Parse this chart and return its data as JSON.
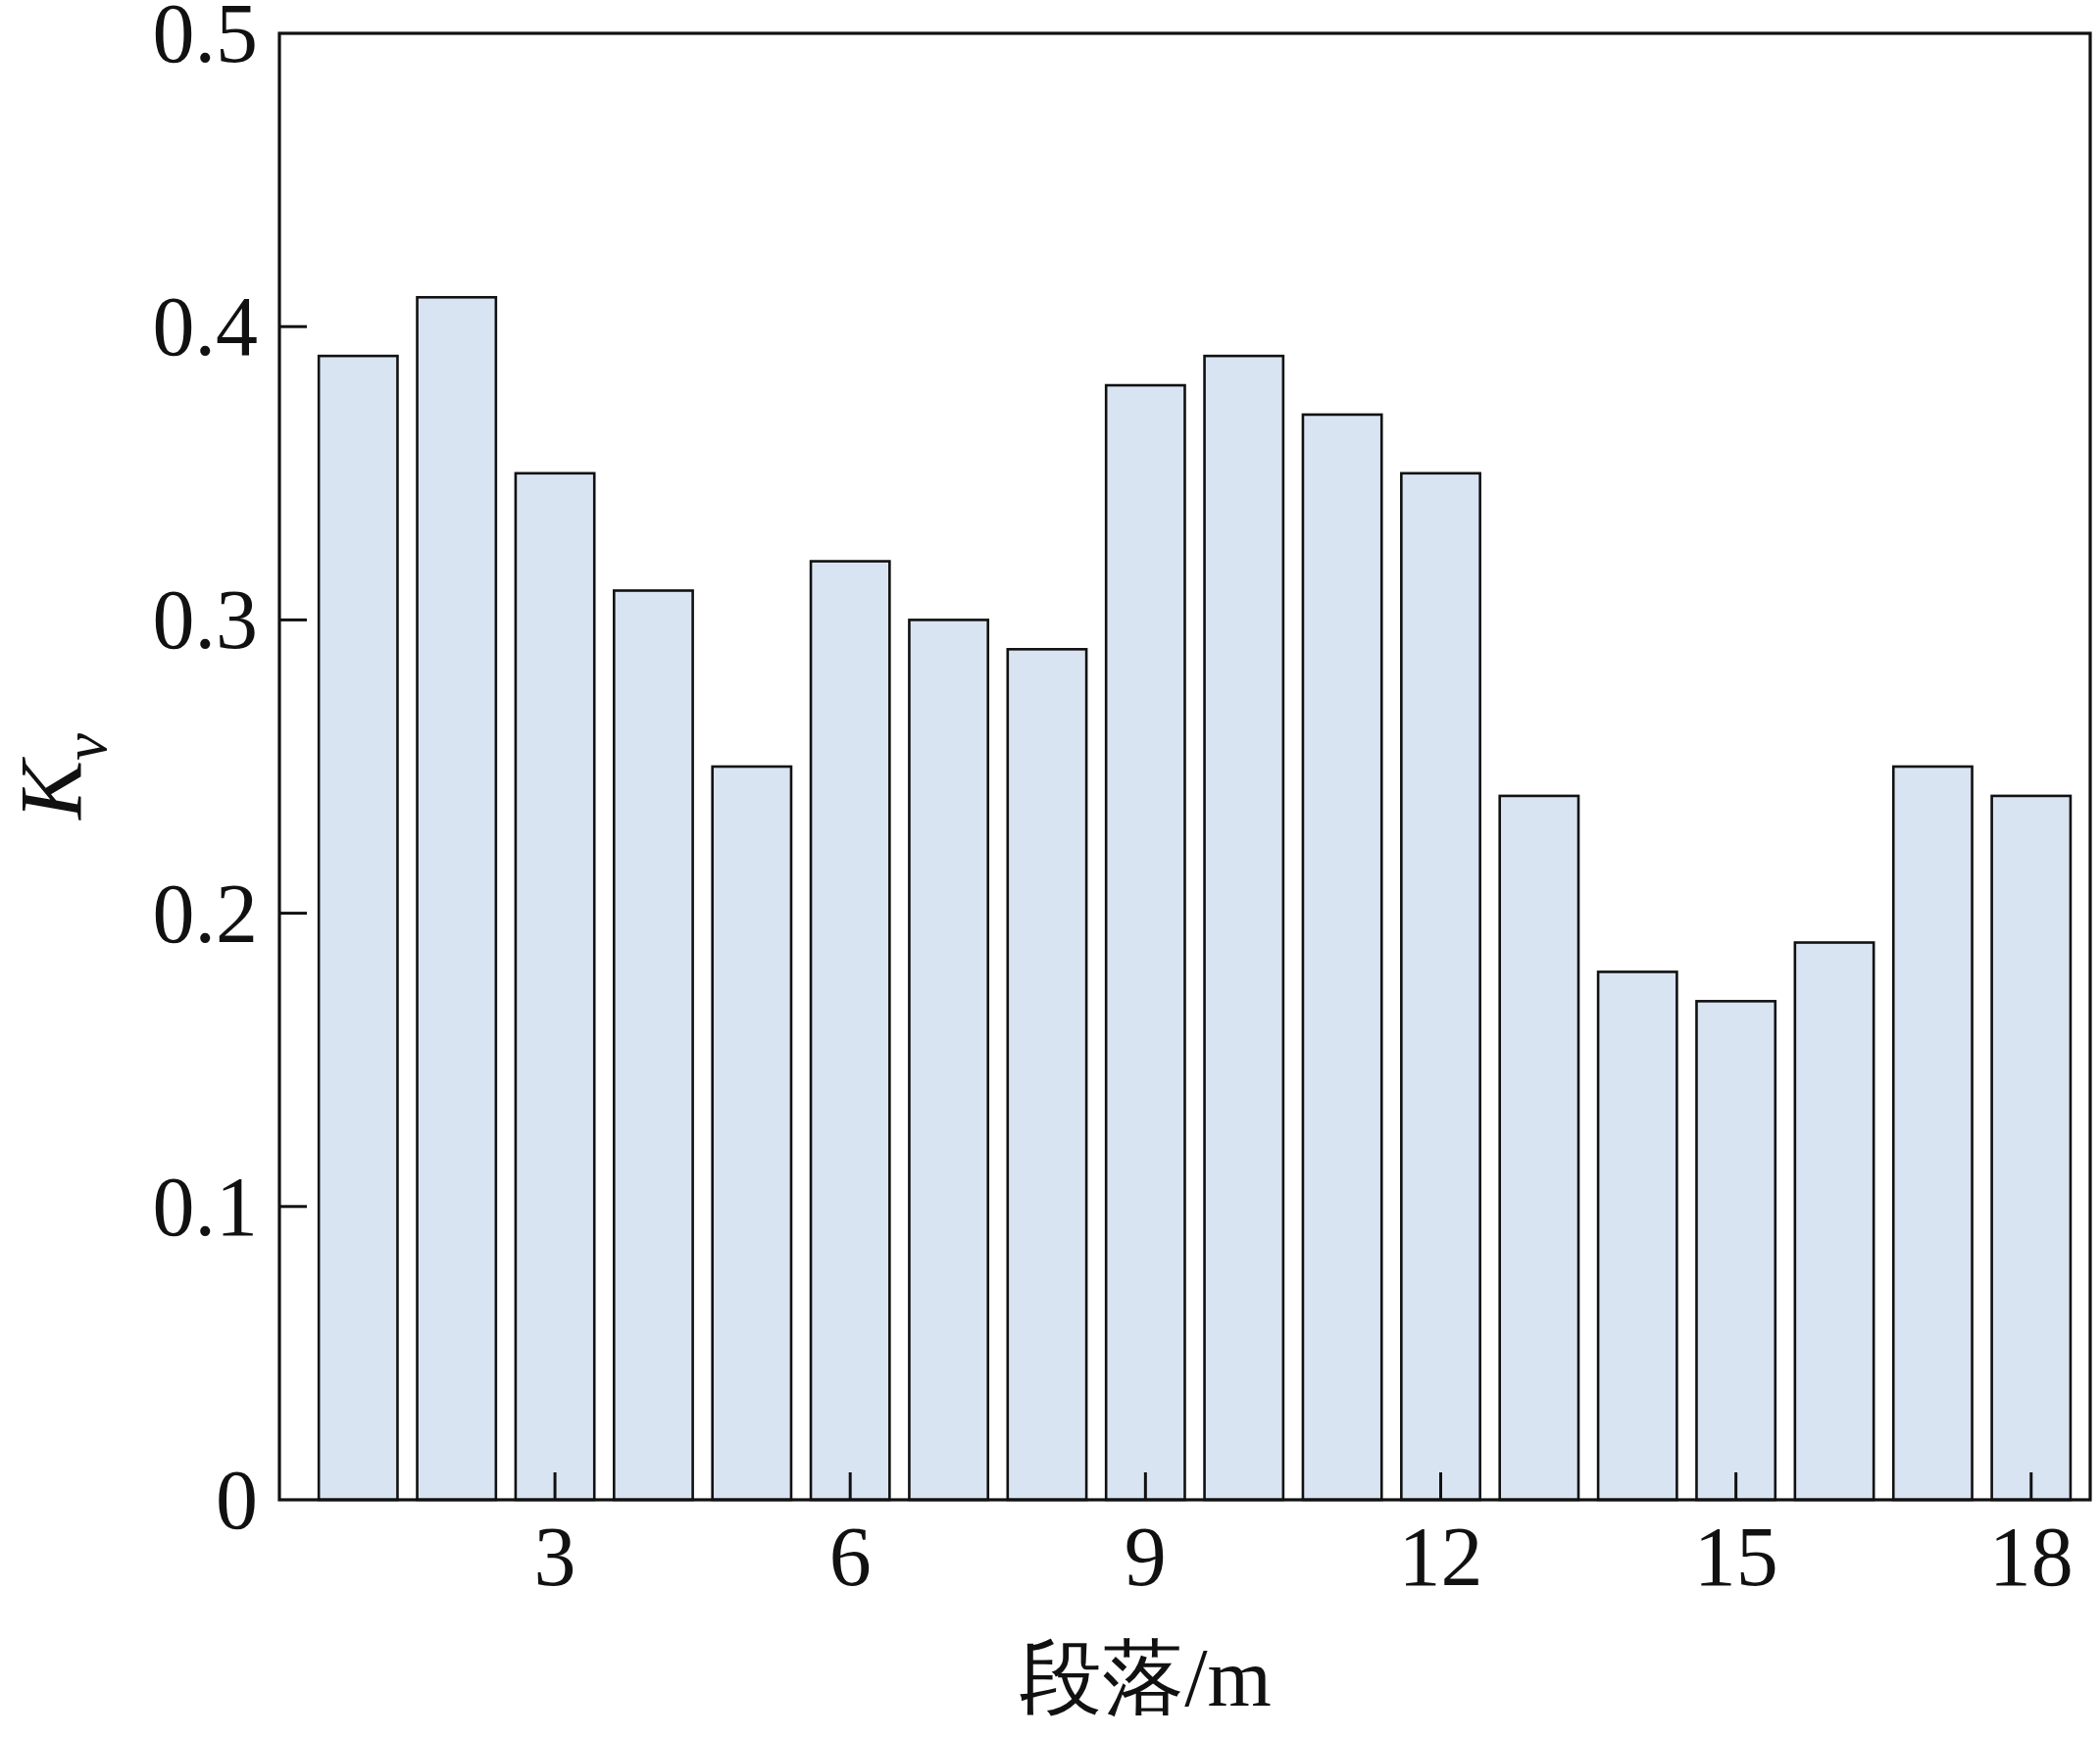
{
  "chart_data": {
    "type": "bar",
    "x": [
      1,
      2,
      3,
      4,
      5,
      6,
      7,
      8,
      9,
      10,
      11,
      12,
      13,
      14,
      15,
      16,
      17,
      18
    ],
    "values": [
      0.39,
      0.41,
      0.35,
      0.31,
      0.25,
      0.32,
      0.3,
      0.29,
      0.38,
      0.39,
      0.37,
      0.35,
      0.24,
      0.18,
      0.17,
      0.19,
      0.25,
      0.24
    ],
    "color": "#d9e4f2",
    "xlabel": "段落/m",
    "ylabel": "K$_{v}$",
    "xlim": [
      0.2,
      18.6
    ],
    "xticks": [
      3,
      6,
      9,
      12,
      15,
      18
    ],
    "ylim": [
      0,
      0.5
    ],
    "yticks": [
      0,
      0.1,
      0.2,
      0.3,
      0.4,
      0.5
    ]
  }
}
